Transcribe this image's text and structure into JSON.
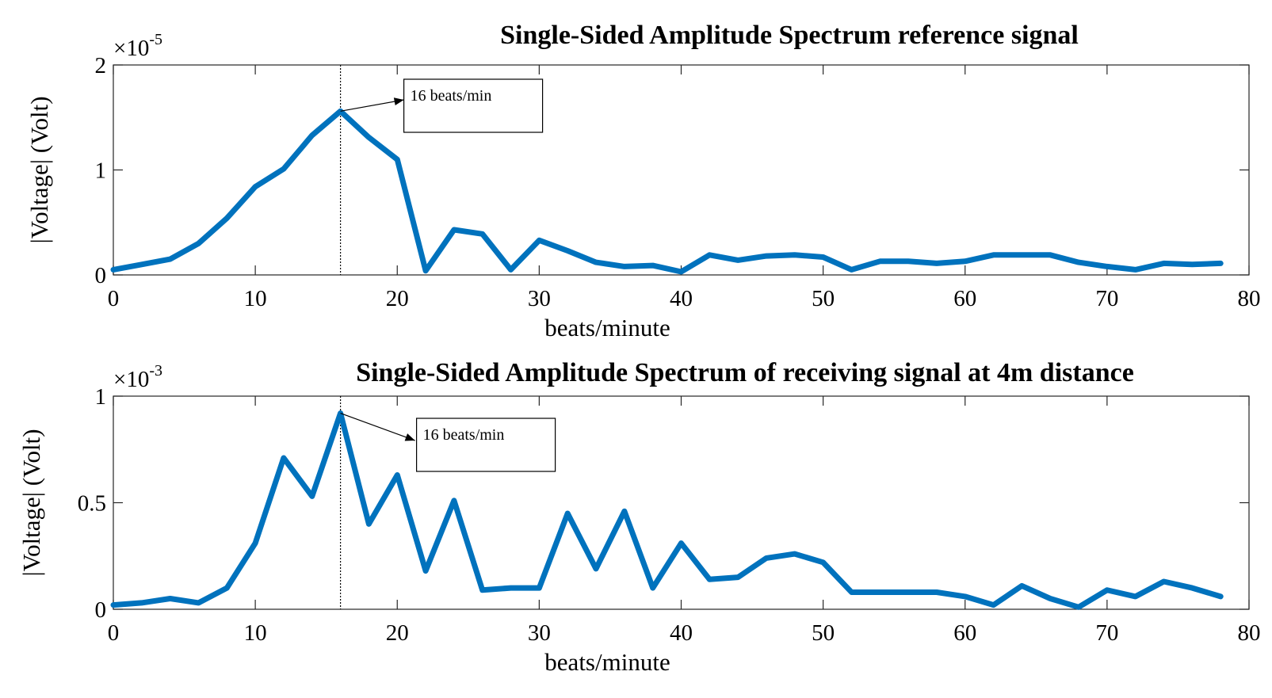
{
  "chart_data": [
    {
      "type": "line",
      "title": "Single-Sided Amplitude Spectrum  reference signal",
      "xlabel": "beats/minute",
      "ylabel": "|Voltage| (Volt)",
      "multiplier_base": "×10",
      "multiplier_exp": "-5",
      "xlim": [
        0,
        80
      ],
      "ylim": [
        0,
        2
      ],
      "xticks": [
        0,
        10,
        20,
        30,
        40,
        50,
        60,
        70,
        80
      ],
      "yticks": [
        0,
        1,
        2
      ],
      "x": [
        0,
        2,
        4,
        6,
        8,
        10,
        12,
        14,
        16,
        18,
        20,
        22,
        24,
        26,
        28,
        30,
        32,
        34,
        36,
        38,
        40,
        42,
        44,
        46,
        48,
        50,
        52,
        54,
        56,
        58,
        60,
        62,
        64,
        66,
        68,
        70,
        72,
        74,
        76,
        78
      ],
      "values": [
        0.05,
        0.1,
        0.15,
        0.3,
        0.54,
        0.84,
        1.01,
        1.33,
        1.56,
        1.31,
        1.1,
        0.04,
        0.43,
        0.39,
        0.05,
        0.33,
        0.23,
        0.12,
        0.08,
        0.09,
        0.03,
        0.19,
        0.14,
        0.18,
        0.19,
        0.17,
        0.05,
        0.13,
        0.13,
        0.11,
        0.13,
        0.19,
        0.19,
        0.19,
        0.12,
        0.08,
        0.05,
        0.11,
        0.1,
        0.11
      ],
      "annotation": {
        "text": "16 beats/min",
        "x": 16
      }
    },
    {
      "type": "line",
      "title": "Single-Sided Amplitude Spectrum of receiving signal at 4m distance",
      "xlabel": "beats/minute",
      "ylabel": "|Voltage| (Volt)",
      "multiplier_base": "×10",
      "multiplier_exp": "-3",
      "xlim": [
        0,
        80
      ],
      "ylim": [
        0,
        1
      ],
      "xticks": [
        0,
        10,
        20,
        30,
        40,
        50,
        60,
        70,
        80
      ],
      "yticks": [
        0,
        0.5,
        1
      ],
      "x": [
        0,
        2,
        4,
        6,
        8,
        10,
        12,
        14,
        16,
        18,
        20,
        22,
        24,
        26,
        28,
        30,
        32,
        34,
        36,
        38,
        40,
        42,
        44,
        46,
        48,
        50,
        52,
        54,
        56,
        58,
        60,
        62,
        64,
        66,
        68,
        70,
        72,
        74,
        76,
        78
      ],
      "values": [
        0.02,
        0.03,
        0.05,
        0.03,
        0.1,
        0.31,
        0.71,
        0.53,
        0.92,
        0.4,
        0.63,
        0.18,
        0.51,
        0.09,
        0.1,
        0.1,
        0.45,
        0.19,
        0.46,
        0.1,
        0.31,
        0.14,
        0.15,
        0.24,
        0.26,
        0.22,
        0.08,
        0.08,
        0.08,
        0.08,
        0.06,
        0.02,
        0.11,
        0.05,
        0.01,
        0.09,
        0.06,
        0.13,
        0.1,
        0.06
      ],
      "annotation": {
        "text": "16 beats/min",
        "x": 16
      }
    }
  ]
}
